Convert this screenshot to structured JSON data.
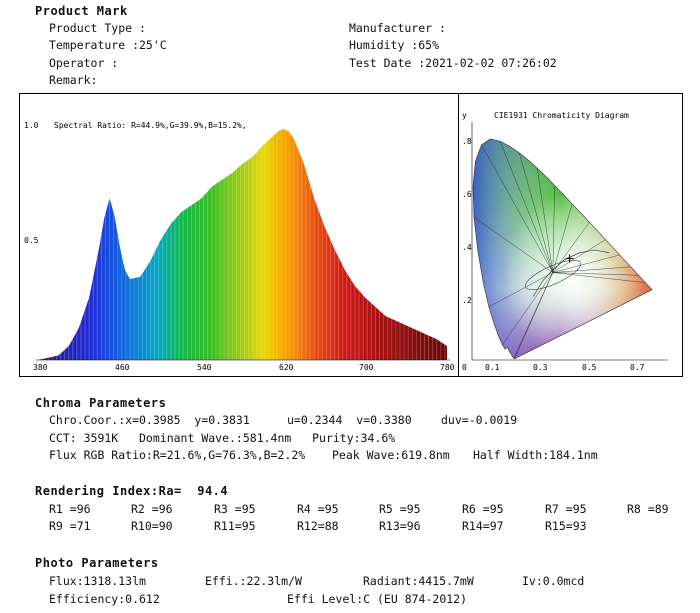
{
  "header": {
    "title": "Product Mark",
    "product_type": "Product Type :",
    "manufacturer": "Manufacturer :",
    "temperature": "Temperature :25'C",
    "humidity": "Humidity :65%",
    "operator": "Operator :",
    "test_date": "Test Date :2021-02-02 07:26:02",
    "remark": "Remark:"
  },
  "chart_data": [
    {
      "type": "area",
      "title": "Spectral Ratio:  R=44.9%,G=39.9%,B=15.2%,",
      "xlim": [
        380,
        780
      ],
      "ylim": [
        0,
        1.0
      ],
      "x_ticks": [
        "380",
        "460",
        "540",
        "620",
        "700",
        "780"
      ],
      "y_ticks": [
        "1.0",
        "0.5"
      ],
      "x": [
        380,
        390,
        400,
        410,
        420,
        430,
        440,
        445,
        450,
        455,
        460,
        465,
        470,
        480,
        490,
        500,
        510,
        520,
        530,
        540,
        550,
        560,
        570,
        580,
        590,
        600,
        610,
        615,
        620,
        625,
        630,
        640,
        650,
        660,
        670,
        680,
        690,
        700,
        710,
        720,
        730,
        740,
        750,
        760,
        770,
        780
      ],
      "y": [
        0.0,
        0.01,
        0.02,
        0.06,
        0.14,
        0.27,
        0.49,
        0.62,
        0.7,
        0.62,
        0.49,
        0.39,
        0.35,
        0.36,
        0.43,
        0.52,
        0.59,
        0.64,
        0.67,
        0.7,
        0.75,
        0.78,
        0.81,
        0.85,
        0.88,
        0.93,
        0.97,
        0.99,
        1.0,
        0.99,
        0.96,
        0.85,
        0.7,
        0.58,
        0.48,
        0.39,
        0.32,
        0.27,
        0.23,
        0.19,
        0.17,
        0.15,
        0.13,
        0.11,
        0.09,
        0.06
      ]
    },
    {
      "type": "scatter",
      "title": "CIE1931 Chromaticity Diagram",
      "ylabel": "y",
      "xlim": [
        0,
        0.8
      ],
      "ylim": [
        0,
        0.9
      ],
      "x_ticks": [
        "0",
        "0.1",
        "0.3",
        "0.5",
        "0.7"
      ],
      "y_ticks": [
        ".8",
        ".6",
        ".4",
        ".2"
      ],
      "points": [
        {
          "x": 0.3985,
          "y": 0.3831
        }
      ]
    }
  ],
  "chroma": {
    "heading": "Chroma Parameters",
    "coor": "Chro.Coor.:x=0.3985  y=0.3831",
    "uv": "u=0.2344  v=0.3380",
    "duv": "duv=-0.0019",
    "cct": "CCT: 3591K   Dominant Wave.:581.4nm   Purity:34.6%",
    "flux_rgb": "Flux RGB Ratio:R=21.6%,G=76.3%,B=2.2%",
    "peak_wave": "Peak Wave:619.8nm",
    "half_width": "Half Width:184.1nm"
  },
  "rendering": {
    "heading": "Rendering Index:Ra=  94.4",
    "row1": [
      "R1 =96",
      "R2 =96",
      "R3 =95",
      "R4 =95",
      "R5 =95",
      "R6 =95",
      "R7 =95",
      "R8 =89"
    ],
    "row2": [
      "R9 =71",
      "R10=90",
      "R11=95",
      "R12=88",
      "R13=96",
      "R14=97",
      "R15=93"
    ]
  },
  "photo": {
    "heading": "Photo Parameters",
    "flux": "Flux:1318.13lm",
    "effi": "Effi.:22.3lm/W",
    "radiant": "Radiant:4415.7mW",
    "iv": "Iv:0.0mcd",
    "efficiency": "Efficiency:0.612",
    "effi_level": "Effi Level:C (EU 874-2012)"
  }
}
